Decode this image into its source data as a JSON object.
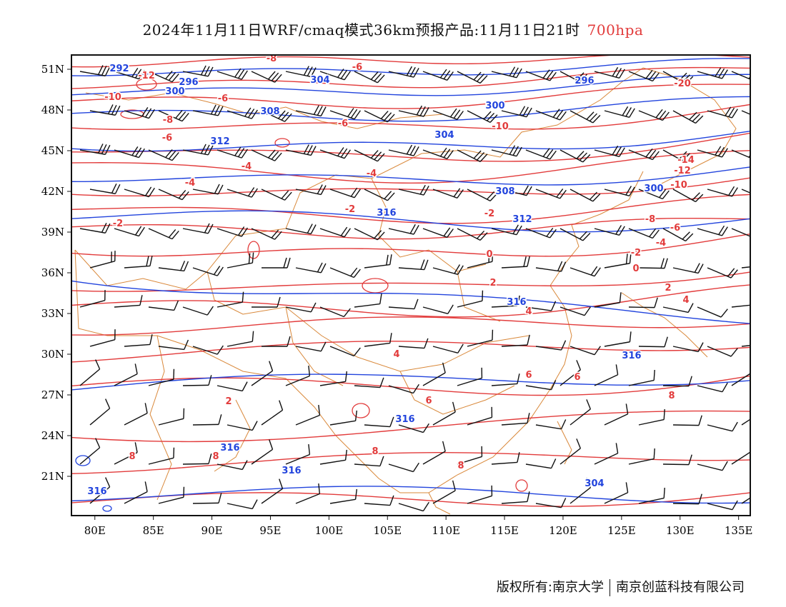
{
  "title": {
    "main": "2024年11月11日WRF/cmaq模式36km预报产品:11月11日21时",
    "level": "700hpa"
  },
  "axes": {
    "lon_labels": [
      "80E",
      "85E",
      "90E",
      "95E",
      "100E",
      "105E",
      "110E",
      "115E",
      "120E",
      "125E",
      "130E",
      "135E"
    ],
    "lat_labels": [
      "51N",
      "48N",
      "45N",
      "42N",
      "39N",
      "36N",
      "33N",
      "30N",
      "27N",
      "24N",
      "21N"
    ]
  },
  "colors": {
    "geopotential": "#2244dd",
    "temperature": "#e23b3b",
    "borders": "#d9883a",
    "wind": "#111111"
  },
  "contour_labels": {
    "geopotential": [
      "292",
      "296",
      "300",
      "304",
      "308",
      "312",
      "316",
      "296",
      "300",
      "304",
      "308",
      "312",
      "316",
      "316",
      "316",
      "316",
      "316",
      "304",
      "300",
      "316"
    ],
    "temperature": [
      "-12",
      "-10",
      "-8",
      "-6",
      "-6",
      "-6",
      "-8",
      "-6",
      "-4",
      "-4",
      "-4",
      "-2",
      "-2",
      "-2",
      "0",
      "2",
      "4",
      "6",
      "8",
      "8",
      "8",
      "8",
      "-10",
      "-20",
      "-14",
      "-12",
      "-10",
      "-8",
      "-6",
      "-4",
      "-2",
      "0",
      "2",
      "4",
      "6",
      "8",
      "6",
      "4",
      "2"
    ]
  },
  "copyright": {
    "left": "版权所有:南京大学",
    "right": "南京创蓝科技有限公司"
  }
}
